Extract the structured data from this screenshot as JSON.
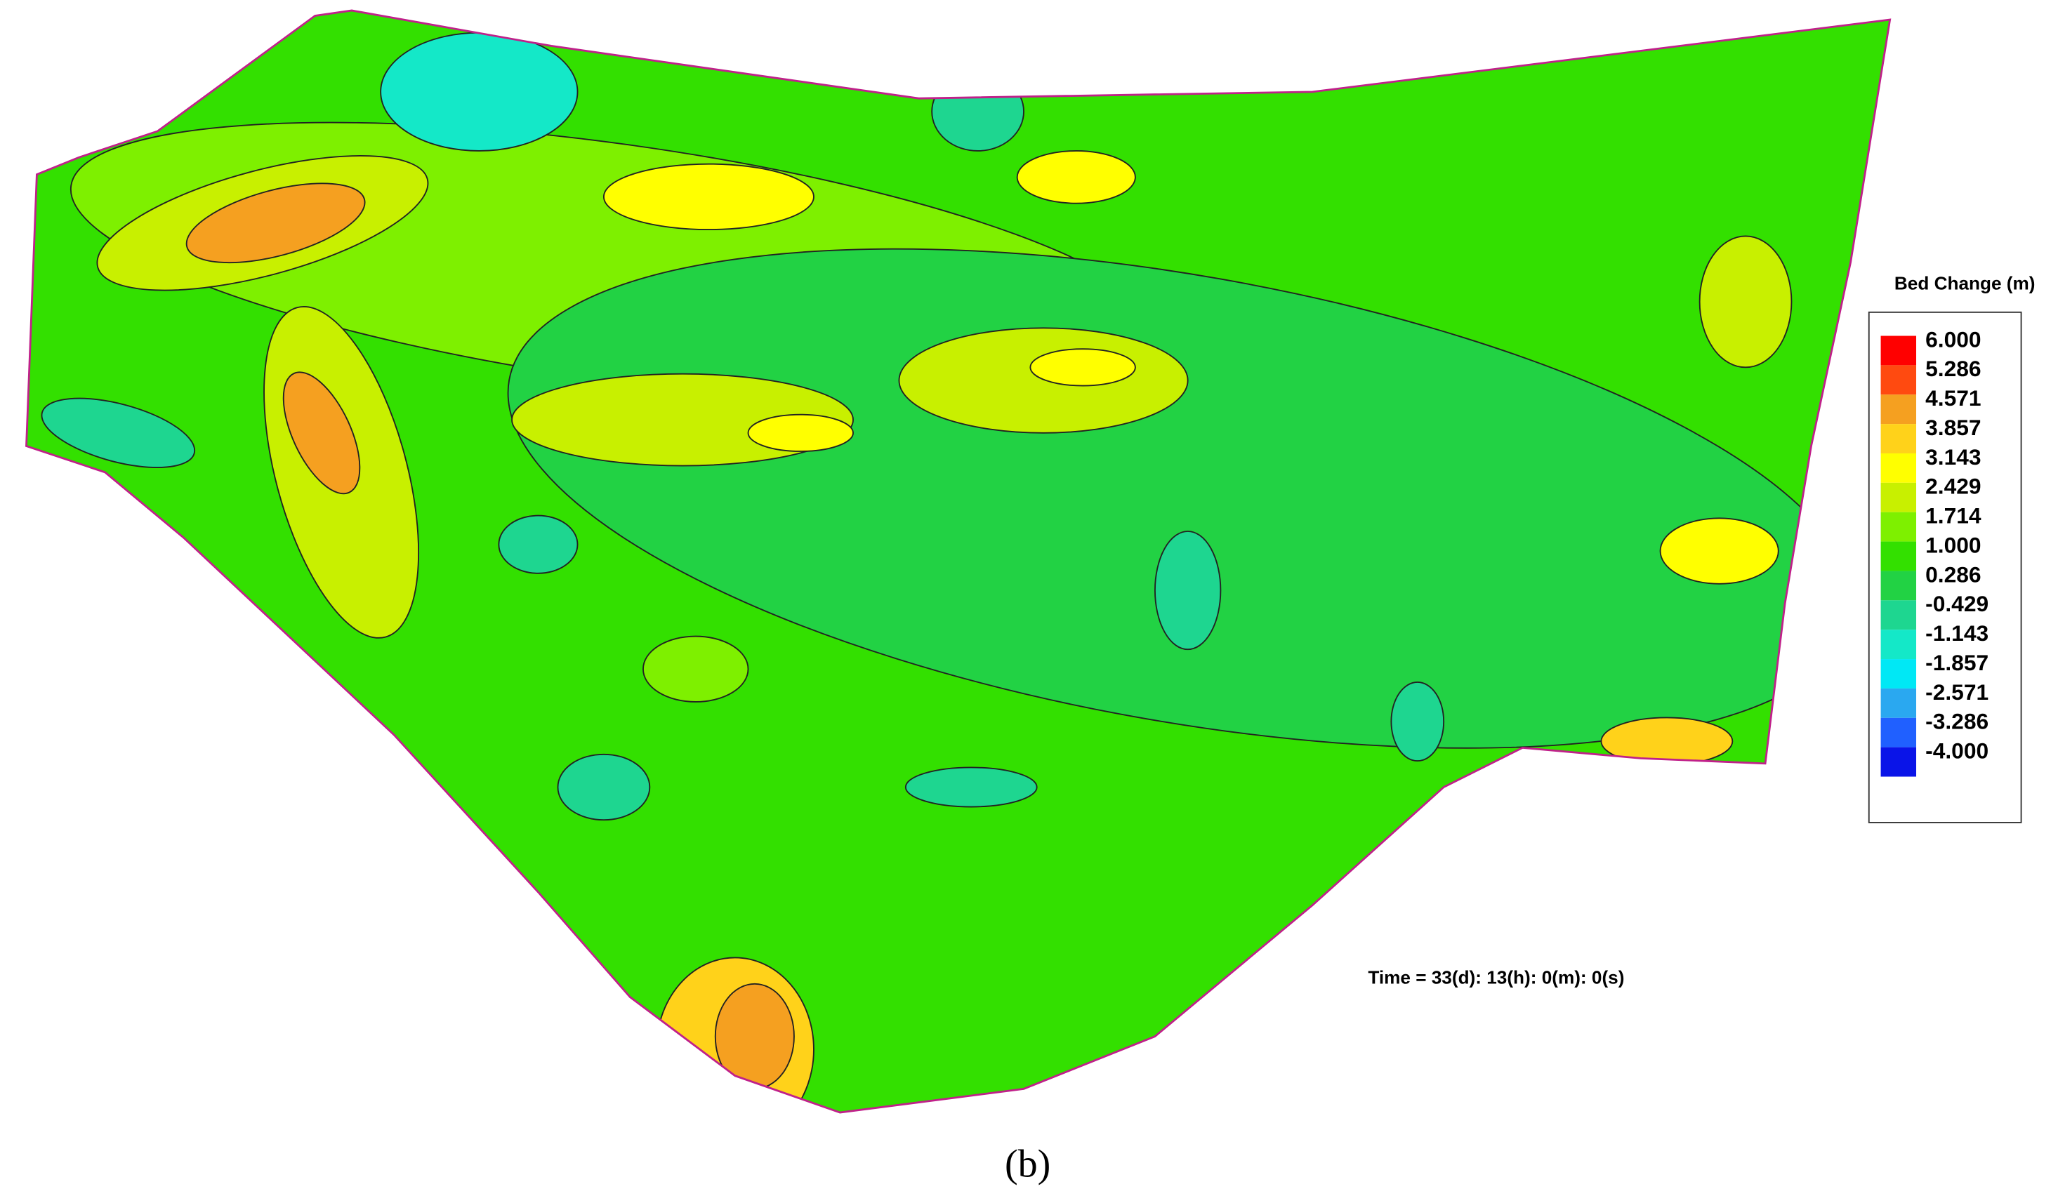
{
  "legend": {
    "title": "Bed Change (m)",
    "levels": [
      {
        "label": "6.000",
        "color": "#ff0000"
      },
      {
        "label": "5.286",
        "color": "#ff4a10"
      },
      {
        "label": "4.571",
        "color": "#f5a020"
      },
      {
        "label": "3.857",
        "color": "#ffd21a"
      },
      {
        "label": "3.143",
        "color": "#ffff00"
      },
      {
        "label": "2.429",
        "color": "#c8f000"
      },
      {
        "label": "1.714",
        "color": "#7ef000"
      },
      {
        "label": "1.000",
        "color": "#33e000"
      },
      {
        "label": "0.286",
        "color": "#22d244"
      },
      {
        "label": "-0.429",
        "color": "#1ed690"
      },
      {
        "label": "-1.143",
        "color": "#14e8c8"
      },
      {
        "label": "-1.857",
        "color": "#00e8f5"
      },
      {
        "label": "-2.571",
        "color": "#2aa8f0"
      },
      {
        "label": "-3.286",
        "color": "#2060ff"
      },
      {
        "label": "-4.000",
        "color": "#0a14e8"
      }
    ]
  },
  "annotation": "Time = 33(d): 13(h): 0(m): 0(s)",
  "caption": "(b)"
}
